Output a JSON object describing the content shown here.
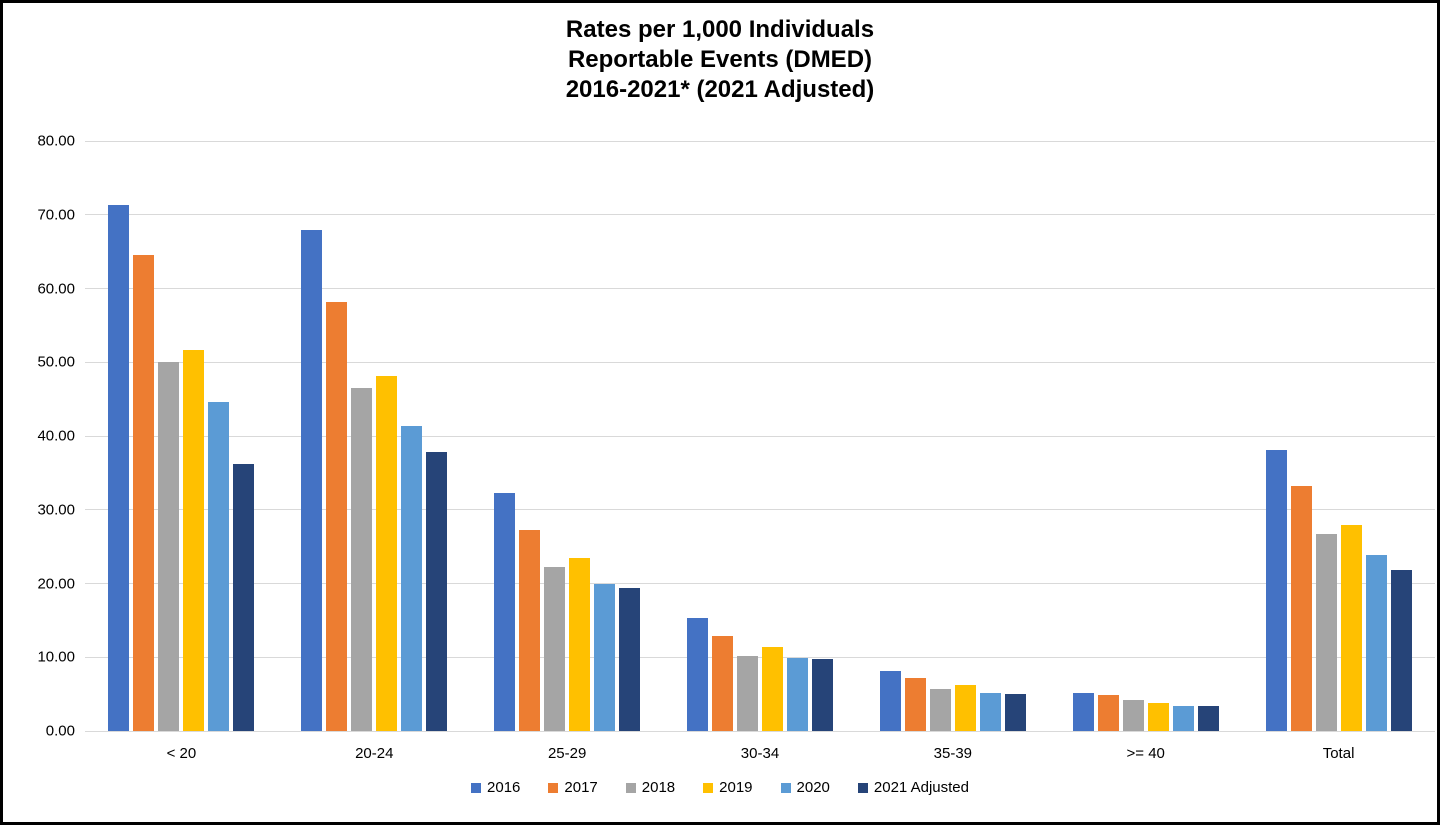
{
  "title": {
    "lines": [
      "Rates per 1,000 Individuals",
      "Reportable Events (DMED)",
      "2016-2021* (2021 Adjusted)"
    ]
  },
  "colors": {
    "background": "#FFFFFF",
    "frame_border": "#000000",
    "gridline": "#D9D9D9",
    "text": "#000000"
  },
  "chart_data": {
    "type": "bar",
    "title": "Rates per 1,000 Individuals Reportable Events (DMED) 2016-2021* (2021 Adjusted)",
    "xlabel": "",
    "ylabel": "",
    "ylim": [
      0,
      80
    ],
    "y_tick_step": 10,
    "y_tick_labels": [
      "80.00",
      "70.00",
      "60.00",
      "50.00",
      "40.00",
      "30.00",
      "20.00",
      "10.00",
      "0.00"
    ],
    "grid": true,
    "legend_position": "bottom",
    "categories": [
      "< 20",
      "20-24",
      "25-29",
      "30-34",
      "35-39",
      ">= 40",
      "Total"
    ],
    "series": [
      {
        "name": "2016",
        "color": "#4472C4",
        "values": [
          71.3,
          68.0,
          32.3,
          15.3,
          8.2,
          5.2,
          38.1
        ]
      },
      {
        "name": "2017",
        "color": "#ED7D31",
        "values": [
          64.5,
          58.2,
          27.2,
          12.9,
          7.2,
          4.9,
          33.2
        ]
      },
      {
        "name": "2018",
        "color": "#A5A5A5",
        "values": [
          50.0,
          46.5,
          22.3,
          10.2,
          5.7,
          4.2,
          26.7
        ]
      },
      {
        "name": "2019",
        "color": "#FFC000",
        "values": [
          51.6,
          48.2,
          23.4,
          11.4,
          6.3,
          3.8,
          27.9
        ]
      },
      {
        "name": "2020",
        "color": "#5B9BD5",
        "values": [
          44.6,
          41.4,
          19.9,
          9.9,
          5.2,
          3.4,
          23.9
        ]
      },
      {
        "name": "2021 Adjusted",
        "color": "#264478",
        "values": [
          36.2,
          37.9,
          19.4,
          9.8,
          5.0,
          3.4,
          21.9
        ]
      }
    ]
  }
}
